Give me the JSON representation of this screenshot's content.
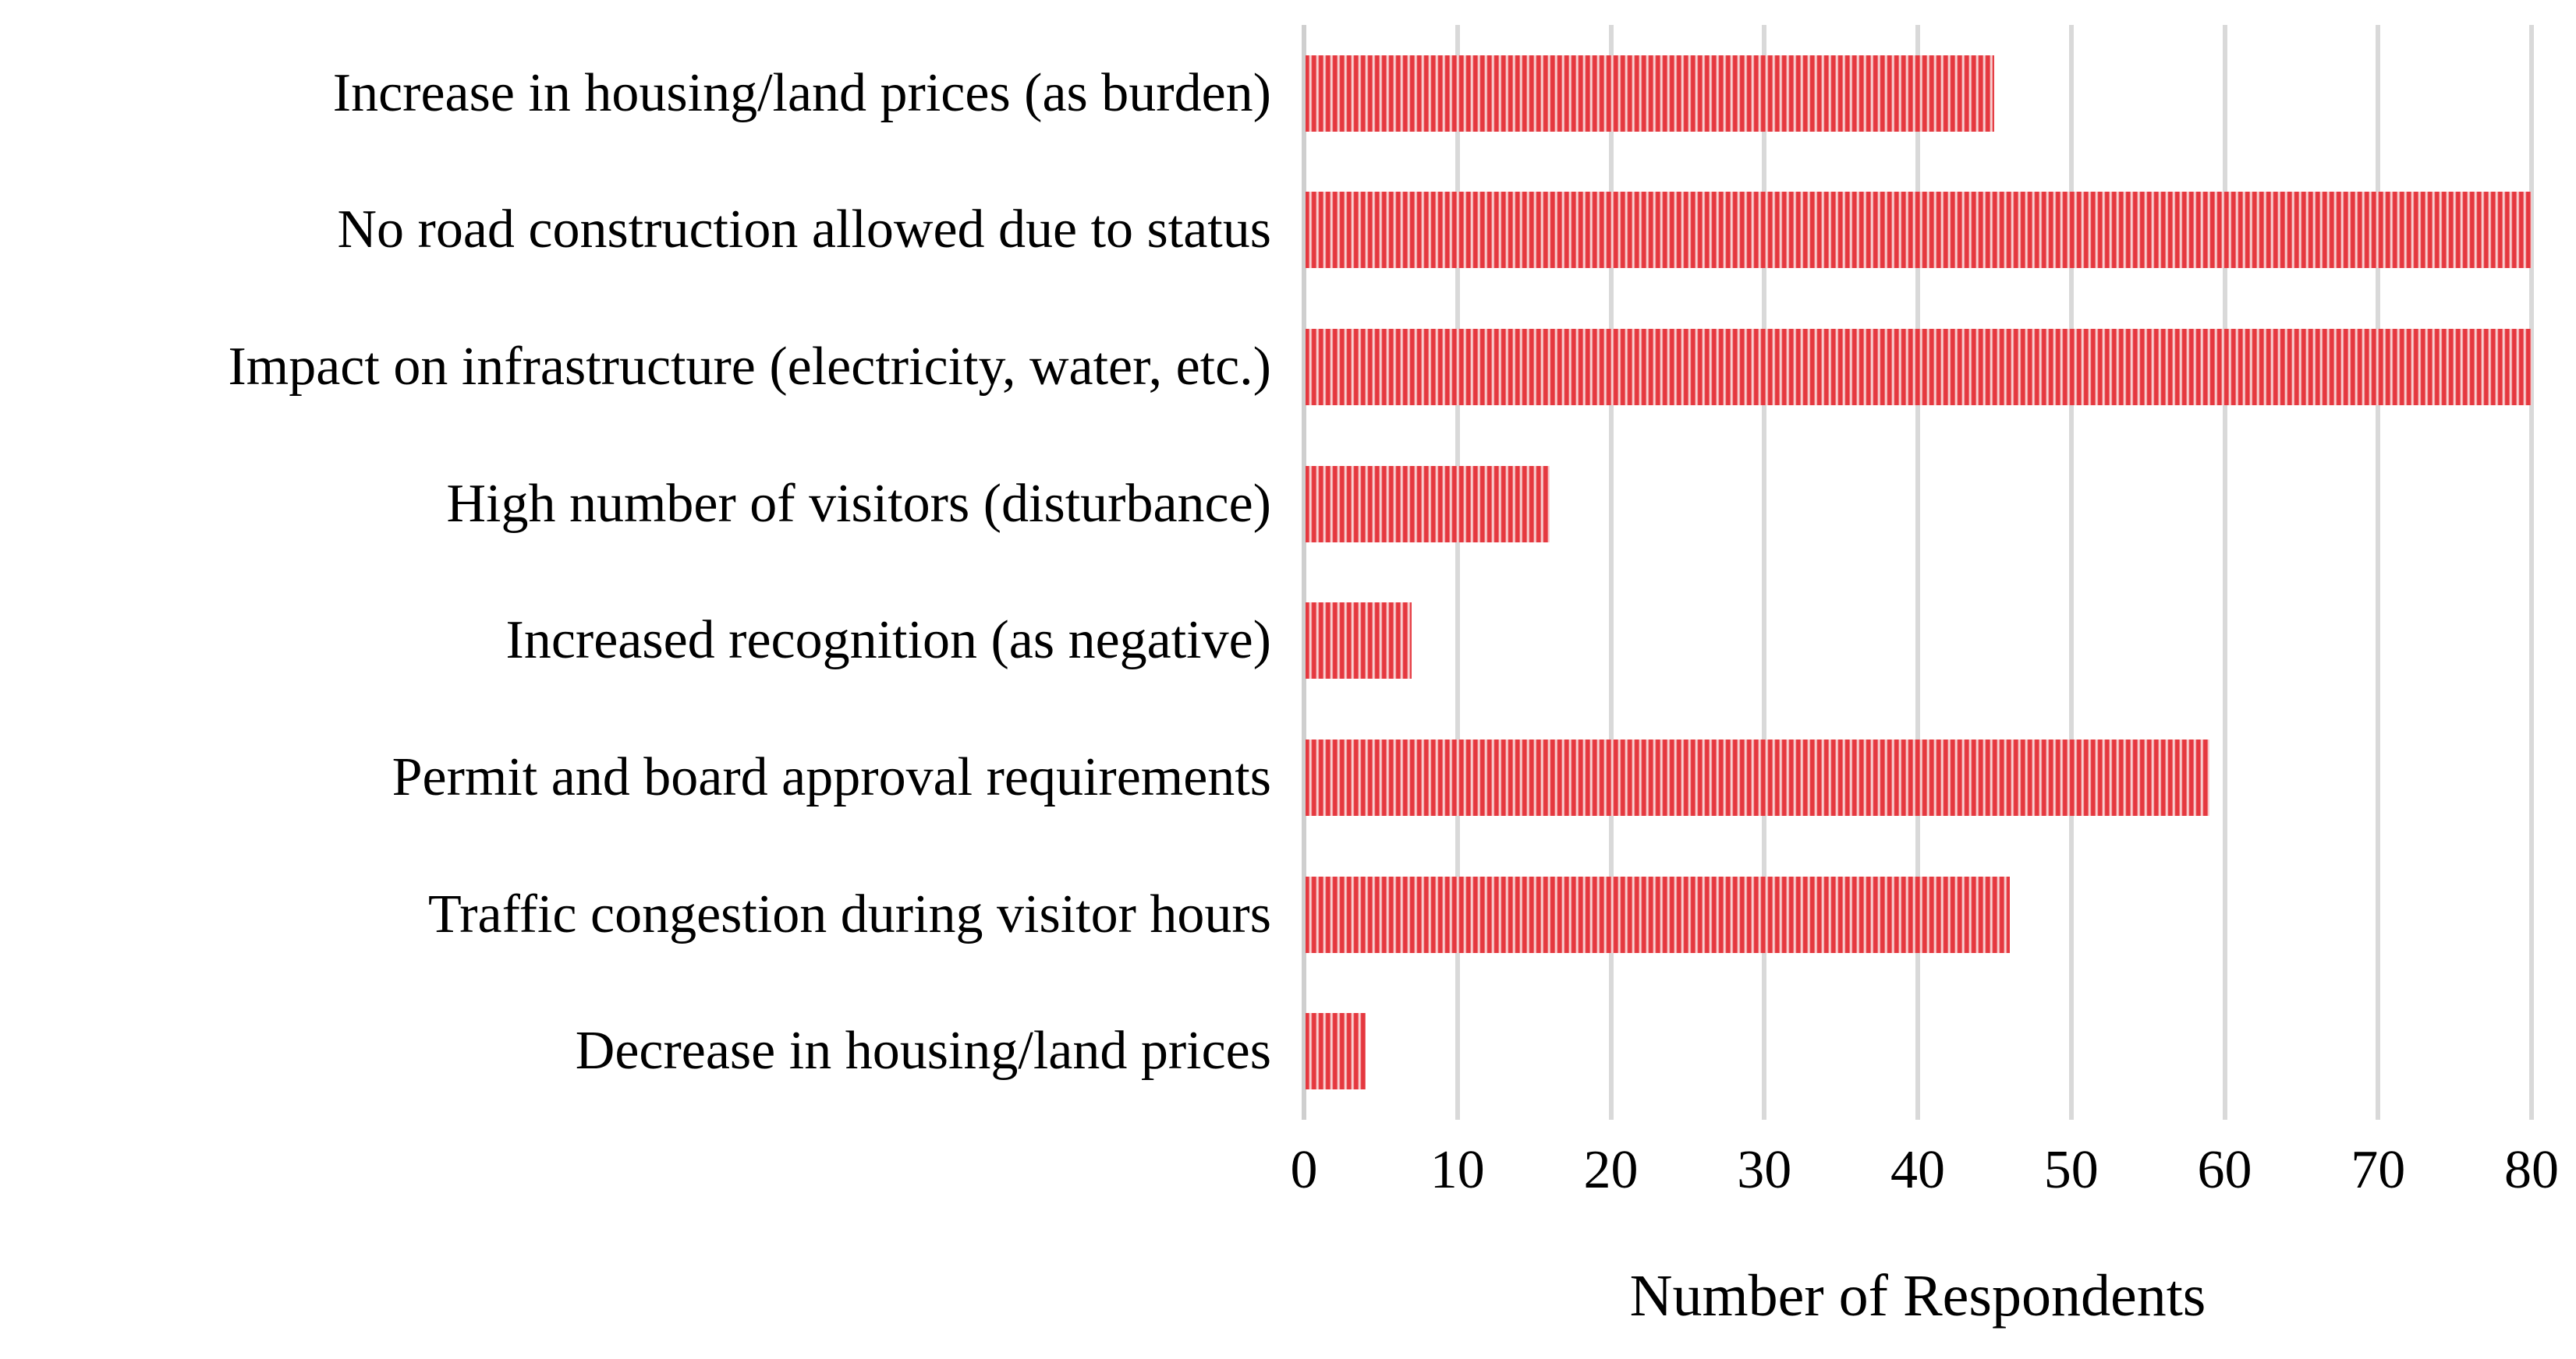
{
  "chart_data": {
    "type": "bar",
    "orientation": "horizontal",
    "title": "",
    "xlabel": "Number of Respondents",
    "ylabel": "",
    "categories": [
      "Increase in housing/land prices (as burden)",
      "No road construction allowed due to status",
      "Impact on infrastructure (electricity, water, etc.)",
      "High number of visitors (disturbance)",
      "Increased recognition (as negative)",
      "Permit and board approval requirements",
      "Traffic congestion during visitor hours",
      "Decrease in housing/land prices"
    ],
    "values": [
      45,
      80,
      80,
      16,
      7,
      59,
      46,
      4
    ],
    "xlim": [
      0,
      80
    ],
    "xticks": [
      0,
      10,
      20,
      30,
      40,
      50,
      60,
      70,
      80
    ],
    "grid": "vertical-only",
    "legend": "none",
    "colors": {
      "bar_stripe_red": "#e5383f",
      "bar_stripe_pink": "#f9d4d5",
      "gridline": "#d9d9d9",
      "axis_line": "#cfcfcf",
      "text": "#000000",
      "background": "#ffffff"
    },
    "bar_fill_pattern": "light-vertical-stripes"
  }
}
